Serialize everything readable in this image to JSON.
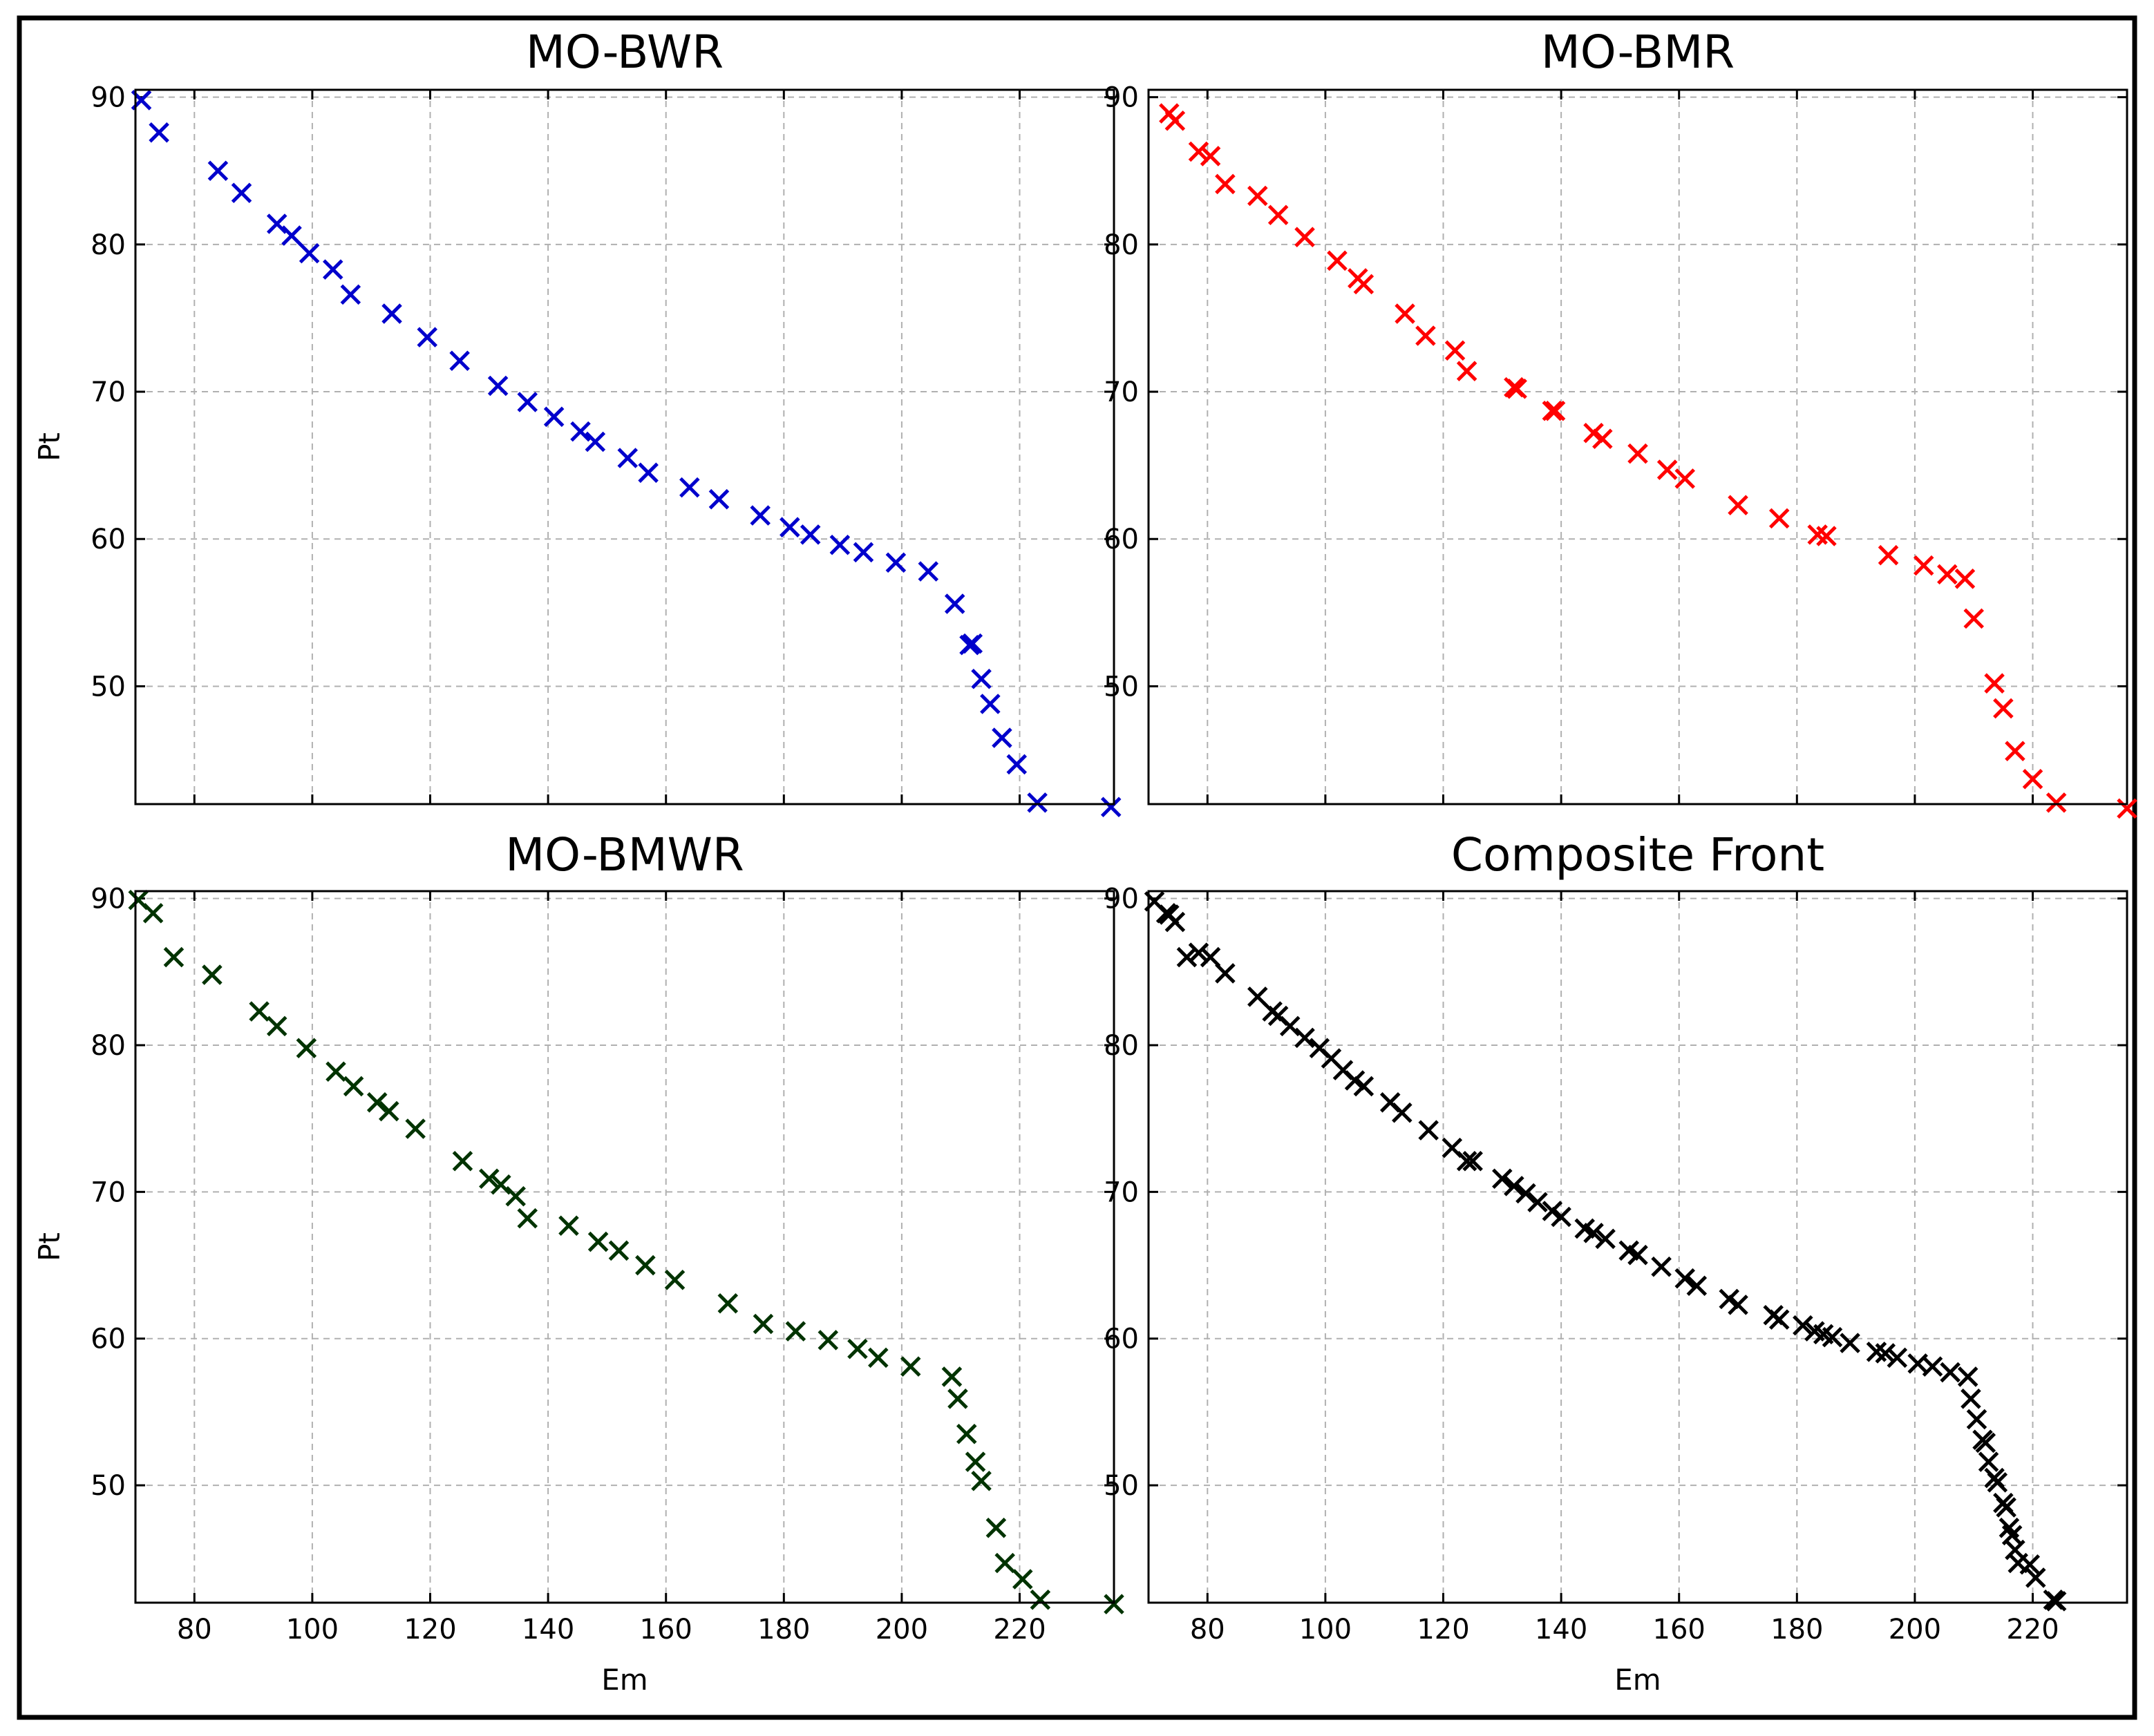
{
  "colors": {
    "MO-BWR": "#0000cc",
    "MO-BMR": "#ff0000",
    "MO-BMWR": "#003300",
    "Composite Front": "#000000"
  },
  "chart_data": [
    {
      "type": "scatter",
      "title": "MO-BWR",
      "xlabel": "",
      "ylabel": "Pt",
      "xlim": [
        70,
        236
      ],
      "ylim": [
        42,
        90.5
      ],
      "xticks": [
        80,
        100,
        120,
        140,
        160,
        180,
        200,
        220
      ],
      "yticks": [
        50,
        60,
        70,
        80,
        90
      ],
      "show_xtick_labels": false,
      "grid": true,
      "marker": "x",
      "color": "#0000cc",
      "points": [
        [
          71,
          89.8
        ],
        [
          74,
          87.6
        ],
        [
          84,
          85
        ],
        [
          88,
          83.5
        ],
        [
          94,
          81.4
        ],
        [
          96.5,
          80.6
        ],
        [
          99.5,
          79.4
        ],
        [
          103.5,
          78.3
        ],
        [
          106.5,
          76.6
        ],
        [
          113.5,
          75.3
        ],
        [
          119.5,
          73.7
        ],
        [
          125,
          72.1
        ],
        [
          131.5,
          70.4
        ],
        [
          136.5,
          69.3
        ],
        [
          141,
          68.3
        ],
        [
          145.5,
          67.3
        ],
        [
          148,
          66.6
        ],
        [
          153.5,
          65.5
        ],
        [
          157,
          64.5
        ],
        [
          164,
          63.5
        ],
        [
          169,
          62.7
        ],
        [
          176,
          61.6
        ],
        [
          181,
          60.8
        ],
        [
          184.5,
          60.3
        ],
        [
          189.5,
          59.6
        ],
        [
          193.5,
          59.1
        ],
        [
          199,
          58.4
        ],
        [
          204.5,
          57.8
        ],
        [
          209,
          55.6
        ],
        [
          211.5,
          52.8
        ],
        [
          212,
          52.9
        ],
        [
          213.5,
          50.5
        ],
        [
          215,
          48.8
        ],
        [
          217,
          46.5
        ],
        [
          219.5,
          44.7
        ],
        [
          223,
          42.1
        ],
        [
          235.5,
          41.8
        ]
      ]
    },
    {
      "type": "scatter",
      "title": "MO-BMR",
      "xlabel": "",
      "ylabel": "",
      "xlim": [
        70,
        236
      ],
      "ylim": [
        42,
        90.5
      ],
      "xticks": [
        80,
        100,
        120,
        140,
        160,
        180,
        200,
        220
      ],
      "yticks": [
        50,
        60,
        70,
        80,
        90
      ],
      "show_xtick_labels": false,
      "grid": true,
      "marker": "x",
      "color": "#ff0000",
      "points": [
        [
          73.5,
          88.9
        ],
        [
          74.5,
          88.4
        ],
        [
          78.5,
          86.3
        ],
        [
          80.5,
          86
        ],
        [
          83,
          84.1
        ],
        [
          88.5,
          83.3
        ],
        [
          92,
          82
        ],
        [
          96.5,
          80.5
        ],
        [
          102,
          78.9
        ],
        [
          105.5,
          77.7
        ],
        [
          106.5,
          77.3
        ],
        [
          113.5,
          75.3
        ],
        [
          117,
          73.8
        ],
        [
          122,
          72.8
        ],
        [
          124,
          71.4
        ],
        [
          132,
          70.3
        ],
        [
          132.5,
          70.2
        ],
        [
          138.5,
          68.7
        ],
        [
          139,
          68.7
        ],
        [
          145.5,
          67.2
        ],
        [
          147,
          66.8
        ],
        [
          153,
          65.8
        ],
        [
          158,
          64.7
        ],
        [
          161,
          64.1
        ],
        [
          170,
          62.3
        ],
        [
          177,
          61.4
        ],
        [
          183.5,
          60.3
        ],
        [
          185,
          60.2
        ],
        [
          195.5,
          58.9
        ],
        [
          201.5,
          58.2
        ],
        [
          205.5,
          57.6
        ],
        [
          208.5,
          57.3
        ],
        [
          210,
          54.6
        ],
        [
          213.5,
          50.2
        ],
        [
          215,
          48.5
        ],
        [
          217,
          45.6
        ],
        [
          220,
          43.7
        ],
        [
          224,
          42.1
        ],
        [
          236,
          41.7
        ]
      ]
    },
    {
      "type": "scatter",
      "title": "MO-BMWR",
      "xlabel": "Em",
      "ylabel": "Pt",
      "xlim": [
        70,
        236
      ],
      "ylim": [
        42,
        90.5
      ],
      "xticks": [
        80,
        100,
        120,
        140,
        160,
        180,
        200,
        220
      ],
      "yticks": [
        50,
        60,
        70,
        80,
        90
      ],
      "show_xtick_labels": true,
      "grid": true,
      "marker": "x",
      "color": "#003300",
      "points": [
        [
          70.5,
          89.9
        ],
        [
          73,
          89
        ],
        [
          76.5,
          86
        ],
        [
          83,
          84.8
        ],
        [
          91,
          82.3
        ],
        [
          94,
          81.3
        ],
        [
          99,
          79.8
        ],
        [
          104,
          78.2
        ],
        [
          107,
          77.2
        ],
        [
          111,
          76.1
        ],
        [
          113,
          75.5
        ],
        [
          117.5,
          74.3
        ],
        [
          125.5,
          72.1
        ],
        [
          130,
          70.9
        ],
        [
          132,
          70.5
        ],
        [
          134.5,
          69.7
        ],
        [
          136.5,
          68.2
        ],
        [
          143.5,
          67.7
        ],
        [
          148.5,
          66.6
        ],
        [
          152,
          66
        ],
        [
          156.5,
          65
        ],
        [
          161.5,
          64
        ],
        [
          170.5,
          62.4
        ],
        [
          176.5,
          61
        ],
        [
          182,
          60.5
        ],
        [
          187.5,
          59.9
        ],
        [
          192.5,
          59.3
        ],
        [
          196,
          58.7
        ],
        [
          201.5,
          58.1
        ],
        [
          208.5,
          57.4
        ],
        [
          209.5,
          55.9
        ],
        [
          211,
          53.5
        ],
        [
          212.5,
          51.6
        ],
        [
          213.5,
          50.3
        ],
        [
          216,
          47.1
        ],
        [
          217.5,
          44.7
        ],
        [
          220.5,
          43.6
        ],
        [
          223.5,
          42.2
        ],
        [
          236,
          41.9
        ]
      ]
    },
    {
      "type": "scatter",
      "title": "Composite Front",
      "xlabel": "Em",
      "ylabel": "",
      "xlim": [
        70,
        236
      ],
      "ylim": [
        42,
        90.5
      ],
      "xticks": [
        80,
        100,
        120,
        140,
        160,
        180,
        200,
        220
      ],
      "yticks": [
        50,
        60,
        70,
        80,
        90
      ],
      "show_xtick_labels": true,
      "grid": true,
      "marker": "x",
      "color": "#000000",
      "points": [
        [
          71,
          89.8
        ],
        [
          73,
          89
        ],
        [
          73.5,
          88.9
        ],
        [
          74.5,
          88.4
        ],
        [
          76.5,
          86
        ],
        [
          78.5,
          86.3
        ],
        [
          80.5,
          86
        ],
        [
          83,
          84.9
        ],
        [
          88.5,
          83.3
        ],
        [
          91,
          82.3
        ],
        [
          92,
          82
        ],
        [
          94,
          81.3
        ],
        [
          96.5,
          80.5
        ],
        [
          99,
          79.8
        ],
        [
          101,
          79.1
        ],
        [
          103,
          78.3
        ],
        [
          105,
          77.6
        ],
        [
          106.5,
          77.2
        ],
        [
          111,
          76.1
        ],
        [
          113,
          75.4
        ],
        [
          117.5,
          74.2
        ],
        [
          121.5,
          73
        ],
        [
          124,
          72.1
        ],
        [
          125,
          72.1
        ],
        [
          130,
          70.9
        ],
        [
          132,
          70.4
        ],
        [
          134,
          69.9
        ],
        [
          136,
          69.3
        ],
        [
          138.5,
          68.7
        ],
        [
          140,
          68.3
        ],
        [
          144,
          67.5
        ],
        [
          145.5,
          67.2
        ],
        [
          147.5,
          66.8
        ],
        [
          151.5,
          66
        ],
        [
          153,
          65.7
        ],
        [
          157,
          64.9
        ],
        [
          161,
          64.1
        ],
        [
          163,
          63.6
        ],
        [
          168.5,
          62.7
        ],
        [
          170,
          62.3
        ],
        [
          176,
          61.6
        ],
        [
          177,
          61.3
        ],
        [
          181,
          60.9
        ],
        [
          183,
          60.5
        ],
        [
          184.5,
          60.3
        ],
        [
          186,
          60.1
        ],
        [
          189,
          59.7
        ],
        [
          193.5,
          59.1
        ],
        [
          195,
          59
        ],
        [
          197,
          58.7
        ],
        [
          200.5,
          58.3
        ],
        [
          203,
          58.1
        ],
        [
          206,
          57.7
        ],
        [
          209,
          57.4
        ],
        [
          209.5,
          55.9
        ],
        [
          210.5,
          54.5
        ],
        [
          211.5,
          53.1
        ],
        [
          212,
          52.9
        ],
        [
          212.5,
          51.6
        ],
        [
          213.5,
          50.5
        ],
        [
          214,
          50.2
        ],
        [
          215,
          48.8
        ],
        [
          215.5,
          48.5
        ],
        [
          216,
          47.1
        ],
        [
          216.5,
          46.6
        ],
        [
          217,
          45.6
        ],
        [
          217.5,
          44.7
        ],
        [
          219.5,
          44.6
        ],
        [
          220.5,
          43.7
        ],
        [
          223.5,
          42.2
        ],
        [
          224,
          42.1
        ]
      ]
    }
  ]
}
